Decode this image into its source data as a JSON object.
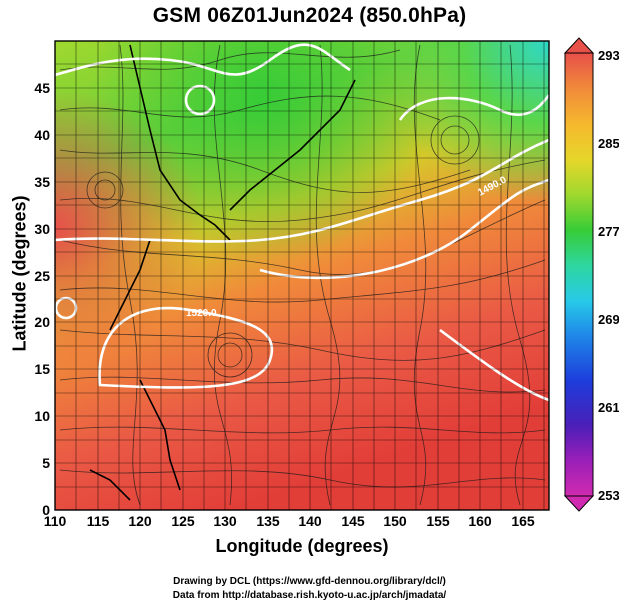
{
  "title": "GSM 06Z01Jun2024 (850.0hPa)",
  "xlabel": "Longitude (degrees)",
  "ylabel": "Latitude  (degrees)",
  "credits": [
    "Drawing by DCL (https://www.gfd-dennou.org/library/dcl/)",
    "Data from http://database.rish.kyoto-u.ac.jp/arch/jmadata/"
  ],
  "x_ticks": [
    "110",
    "115",
    "120",
    "125",
    "130",
    "135",
    "140",
    "145",
    "150",
    "155",
    "160",
    "165"
  ],
  "y_ticks": [
    "0",
    "5",
    "10",
    "15",
    "20",
    "25",
    "30",
    "35",
    "40",
    "45"
  ],
  "colorbar": {
    "ticks": [
      "293",
      "285",
      "277",
      "269",
      "261",
      "253"
    ],
    "colors": [
      "#e8504a",
      "#f08a3a",
      "#f6b82e",
      "#e6d62a",
      "#9fd82e",
      "#37cc37",
      "#2ed7a0",
      "#27c9e8",
      "#1f86e8",
      "#1d3ddb",
      "#4a1fb8",
      "#9a1fb8",
      "#d02bb0"
    ]
  },
  "contours": [
    {
      "label": "1520.0"
    },
    {
      "label": "1490.0"
    }
  ]
}
